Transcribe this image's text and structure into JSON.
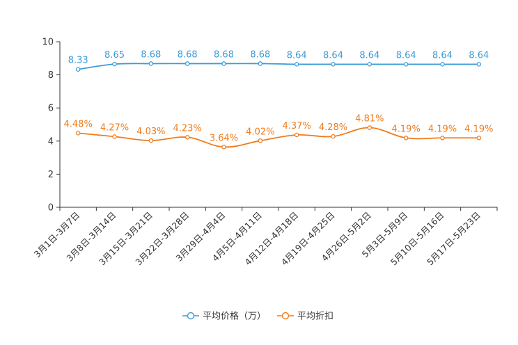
{
  "chart_data": {
    "type": "line",
    "categories": [
      "3月1日-3月7日",
      "3月8日-3月14日",
      "3月15日-3月21日",
      "3月22日-3月28日",
      "3月29日-4月4日",
      "4月5日-4月11日",
      "4月12日-4月18日",
      "4月19日-4月25日",
      "4月26日-5月2日",
      "5月3日-5月9日",
      "5月10日-5月16日",
      "5月17日-5月23日"
    ],
    "ylim": [
      0,
      10
    ],
    "yticks": [
      0,
      2,
      4,
      6,
      8,
      10
    ],
    "series": [
      {
        "name": "平均价格（万）",
        "color": "#3b9bd6",
        "values": [
          8.33,
          8.65,
          8.68,
          8.68,
          8.68,
          8.68,
          8.64,
          8.64,
          8.64,
          8.64,
          8.64,
          8.64
        ],
        "labels": [
          "8.33",
          "8.65",
          "8.68",
          "8.68",
          "8.68",
          "8.68",
          "8.64",
          "8.64",
          "8.64",
          "8.64",
          "8.64",
          "8.64"
        ]
      },
      {
        "name": "平均折扣",
        "color": "#f07c1c",
        "values": [
          4.48,
          4.27,
          4.03,
          4.23,
          3.64,
          4.02,
          4.37,
          4.28,
          4.81,
          4.19,
          4.19,
          4.19
        ],
        "labels": [
          "4.48%",
          "4.27%",
          "4.03%",
          "4.23%",
          "3.64%",
          "4.02%",
          "4.37%",
          "4.28%",
          "4.81%",
          "4.19%",
          "4.19%",
          "4.19%"
        ]
      }
    ],
    "legend_position": "bottom-center"
  }
}
